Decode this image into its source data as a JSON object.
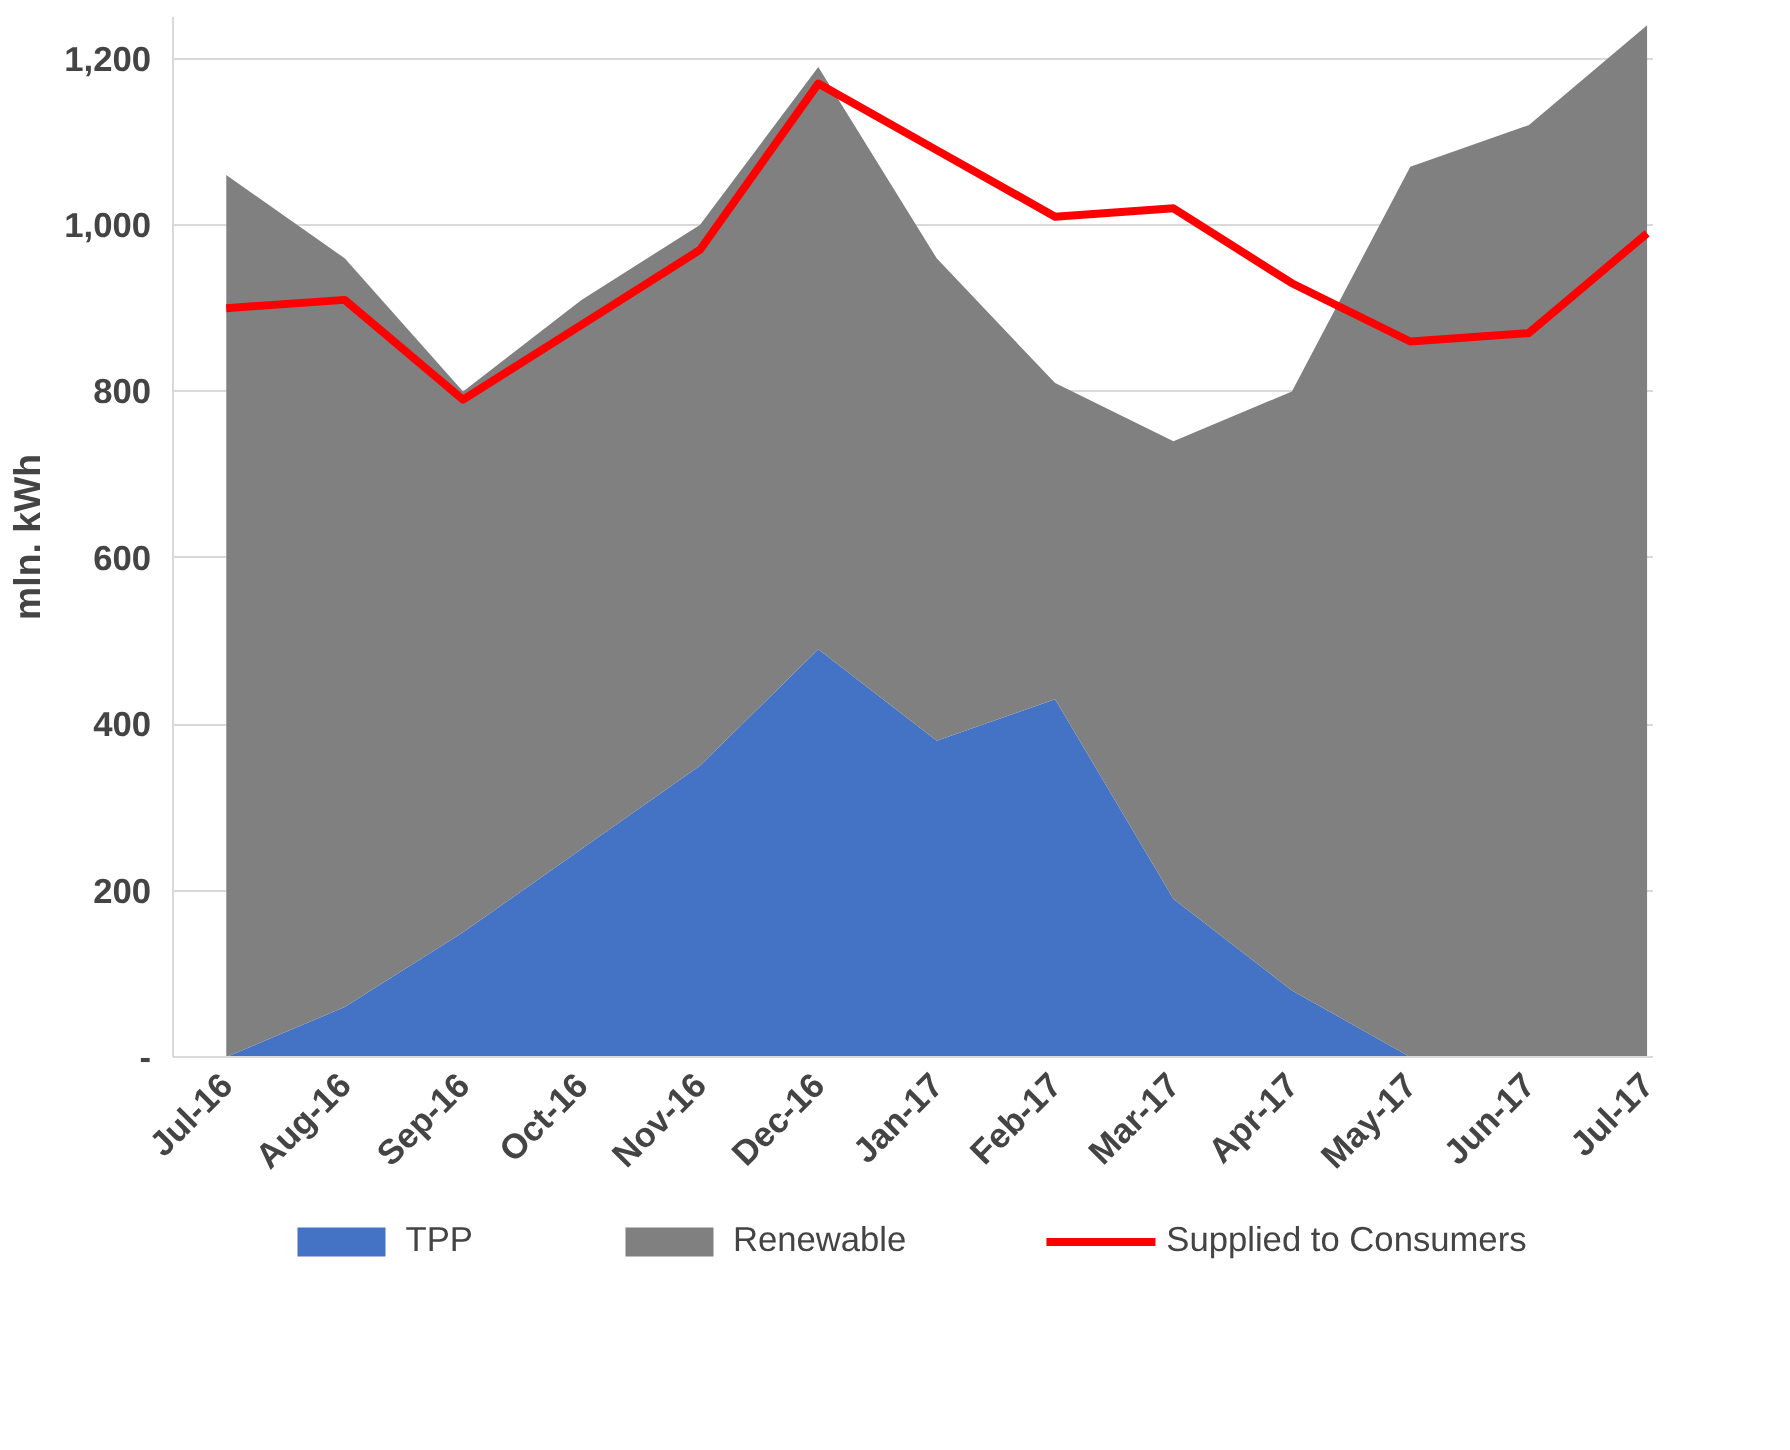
{
  "chart_data": {
    "type": "area",
    "stacked": true,
    "ylabel": "mln. kWh",
    "categories": [
      "Jul-16",
      "Aug-16",
      "Sep-16",
      "Oct-16",
      "Nov-16",
      "Dec-16",
      "Jan-17",
      "Feb-17",
      "Mar-17",
      "Apr-17",
      "May-17",
      "Jun-17",
      "Jul-17"
    ],
    "series": [
      {
        "name": "TPP",
        "color": "#4472c4",
        "values": [
          0,
          60,
          150,
          250,
          350,
          490,
          380,
          430,
          190,
          80,
          0,
          0,
          0
        ]
      },
      {
        "name": "Renewable",
        "color": "#808080",
        "values": [
          1060,
          900,
          650,
          660,
          650,
          700,
          580,
          380,
          550,
          720,
          1070,
          1120,
          1240
        ]
      },
      {
        "name": "Supplied to Consumers",
        "type": "line",
        "color": "#ff0000",
        "values": [
          900,
          910,
          790,
          880,
          970,
          1170,
          1090,
          1010,
          1020,
          930,
          860,
          870,
          990
        ]
      }
    ],
    "ylim": [
      0,
      1250
    ],
    "yticks": [
      {
        "value": 0,
        "label": "-"
      },
      {
        "value": 200,
        "label": "200"
      },
      {
        "value": 400,
        "label": "400"
      },
      {
        "value": 600,
        "label": "600"
      },
      {
        "value": 800,
        "label": "800"
      },
      {
        "value": 1000,
        "label": "1,000"
      },
      {
        "value": 1200,
        "label": "1,200"
      }
    ],
    "grid": "y",
    "legend": "bottom"
  }
}
